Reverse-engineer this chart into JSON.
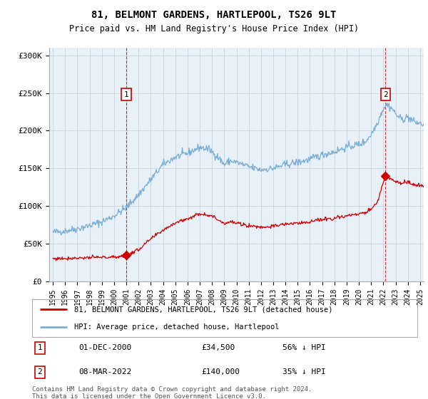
{
  "title": "81, BELMONT GARDENS, HARTLEPOOL, TS26 9LT",
  "subtitle": "Price paid vs. HM Land Registry's House Price Index (HPI)",
  "ylabel_ticks": [
    "£0",
    "£50K",
    "£100K",
    "£150K",
    "£200K",
    "£250K",
    "£300K"
  ],
  "ytick_values": [
    0,
    50000,
    100000,
    150000,
    200000,
    250000,
    300000
  ],
  "ylim": [
    0,
    310000
  ],
  "xlim_start": 1994.7,
  "xlim_end": 2025.3,
  "sale1_date": 2001.0,
  "sale1_price": 34500,
  "sale1_label": "1",
  "sale2_date": 2022.17,
  "sale2_price": 140000,
  "sale2_label": "2",
  "property_color": "#cc0000",
  "hpi_color": "#7aadd4",
  "chart_bg": "#e8f0f8",
  "legend1": "81, BELMONT GARDENS, HARTLEPOOL, TS26 9LT (detached house)",
  "legend2": "HPI: Average price, detached house, Hartlepool",
  "table_row1_num": "1",
  "table_row1_date": "01-DEC-2000",
  "table_row1_price": "£34,500",
  "table_row1_hpi": "56% ↓ HPI",
  "table_row2_num": "2",
  "table_row2_date": "08-MAR-2022",
  "table_row2_price": "£140,000",
  "table_row2_hpi": "35% ↓ HPI",
  "footnote": "Contains HM Land Registry data © Crown copyright and database right 2024.\nThis data is licensed under the Open Government Licence v3.0.",
  "background_color": "#ffffff",
  "grid_color": "#c8d4e4"
}
